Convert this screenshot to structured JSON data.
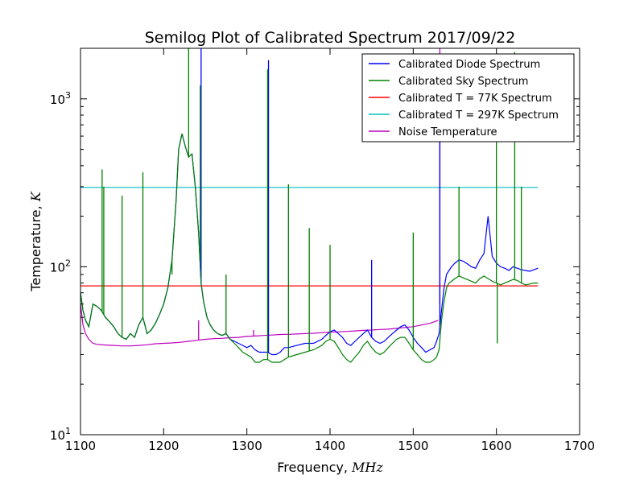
{
  "chart_data": {
    "type": "line",
    "title": "Semilog Plot of Calibrated Spectrum 2017/09/22",
    "xlabel": {
      "text": "Frequency, ",
      "unit": "MHz"
    },
    "ylabel": {
      "text": "Temperature, ",
      "unit": "K"
    },
    "xlim": [
      1100,
      1700
    ],
    "ylim": [
      10,
      2000
    ],
    "yscale": "log",
    "grid": false,
    "legend_position": "top-right",
    "x_ticks": [
      {
        "value": 1100,
        "label": "1100"
      },
      {
        "value": 1200,
        "label": "1200"
      },
      {
        "value": 1300,
        "label": "1300"
      },
      {
        "value": 1400,
        "label": "1400"
      },
      {
        "value": 1500,
        "label": "1500"
      },
      {
        "value": 1600,
        "label": "1600"
      },
      {
        "value": 1700,
        "label": "1700"
      }
    ],
    "y_ticks": [
      {
        "value": 10,
        "base": "10",
        "exp": "1"
      },
      {
        "value": 100,
        "base": "10",
        "exp": "2"
      },
      {
        "value": 1000,
        "base": "10",
        "exp": "3"
      }
    ],
    "series": [
      {
        "name": "Calibrated Diode Spectrum",
        "color": "#0000ff",
        "x": [
          1100,
          1103,
          1106,
          1110,
          1115,
          1120,
          1125,
          1130,
          1135,
          1140,
          1145,
          1150,
          1155,
          1160,
          1165,
          1170,
          1175,
          1180,
          1185,
          1190,
          1195,
          1200,
          1205,
          1210,
          1215,
          1218,
          1222,
          1226,
          1230,
          1234,
          1238,
          1242,
          1245,
          1248,
          1252,
          1256,
          1260,
          1265,
          1270,
          1275,
          1280,
          1285,
          1290,
          1295,
          1300,
          1305,
          1310,
          1315,
          1320,
          1325,
          1330,
          1335,
          1340,
          1345,
          1350,
          1360,
          1370,
          1380,
          1390,
          1395,
          1400,
          1405,
          1410,
          1415,
          1420,
          1425,
          1430,
          1435,
          1440,
          1445,
          1450,
          1455,
          1460,
          1465,
          1470,
          1475,
          1480,
          1485,
          1490,
          1495,
          1500,
          1505,
          1510,
          1515,
          1520,
          1525,
          1528,
          1531,
          1534,
          1537,
          1540,
          1543,
          1546,
          1550,
          1555,
          1560,
          1565,
          1570,
          1575,
          1580,
          1585,
          1590,
          1595,
          1600,
          1605,
          1610,
          1615,
          1620,
          1625,
          1630,
          1635,
          1640,
          1645,
          1650
        ],
        "y": [
          70,
          55,
          48,
          44,
          60,
          58,
          55,
          50,
          47,
          44,
          40,
          38,
          37,
          40,
          38,
          45,
          50,
          40,
          42,
          46,
          52,
          60,
          75,
          110,
          250,
          500,
          620,
          520,
          450,
          470,
          300,
          160,
          80,
          62,
          50,
          45,
          42,
          40,
          39,
          40,
          37,
          36,
          35,
          34,
          33,
          34,
          32,
          31,
          31,
          31,
          30,
          30,
          31,
          33,
          33,
          34,
          35,
          35,
          37,
          39,
          41,
          42,
          40,
          38,
          35,
          34,
          36,
          38,
          40,
          42,
          38,
          36,
          35,
          36,
          38,
          40,
          42,
          44,
          45,
          42,
          38,
          35,
          33,
          31,
          32,
          33,
          36,
          40,
          55,
          75,
          90,
          95,
          100,
          105,
          110,
          108,
          104,
          100,
          98,
          110,
          120,
          200,
          115,
          105,
          100,
          98,
          95,
          100,
          98,
          96,
          95,
          94,
          96,
          98
        ]
      },
      {
        "name": "Calibrated Sky Spectrum",
        "color": "#008000",
        "x": [
          1100,
          1103,
          1106,
          1110,
          1115,
          1120,
          1125,
          1130,
          1135,
          1140,
          1145,
          1150,
          1155,
          1160,
          1165,
          1170,
          1175,
          1180,
          1185,
          1190,
          1195,
          1200,
          1205,
          1210,
          1215,
          1218,
          1222,
          1226,
          1230,
          1234,
          1238,
          1242,
          1245,
          1248,
          1252,
          1256,
          1260,
          1265,
          1270,
          1275,
          1280,
          1285,
          1290,
          1295,
          1300,
          1305,
          1310,
          1315,
          1320,
          1325,
          1330,
          1335,
          1340,
          1345,
          1350,
          1360,
          1370,
          1380,
          1390,
          1395,
          1400,
          1405,
          1410,
          1415,
          1420,
          1425,
          1430,
          1435,
          1440,
          1445,
          1450,
          1455,
          1460,
          1465,
          1470,
          1475,
          1480,
          1485,
          1490,
          1495,
          1500,
          1505,
          1510,
          1515,
          1520,
          1525,
          1528,
          1531,
          1534,
          1537,
          1540,
          1543,
          1546,
          1550,
          1555,
          1560,
          1565,
          1570,
          1575,
          1580,
          1585,
          1590,
          1595,
          1600,
          1605,
          1610,
          1615,
          1620,
          1625,
          1630,
          1635,
          1640,
          1645,
          1650
        ],
        "y": [
          70,
          55,
          48,
          44,
          60,
          58,
          55,
          50,
          47,
          44,
          40,
          38,
          37,
          40,
          38,
          45,
          50,
          40,
          42,
          46,
          52,
          60,
          75,
          110,
          250,
          500,
          620,
          520,
          450,
          470,
          300,
          160,
          80,
          62,
          50,
          45,
          42,
          40,
          39,
          40,
          37,
          35,
          33,
          31,
          30,
          29,
          27,
          27,
          28,
          28,
          27,
          27,
          27,
          28,
          29,
          30,
          31,
          32,
          34,
          36,
          37,
          36,
          33,
          30,
          28,
          27,
          29,
          31,
          34,
          36,
          33,
          31,
          30,
          31,
          33,
          35,
          37,
          38,
          38,
          35,
          32,
          30,
          28,
          27,
          27,
          28,
          29,
          32,
          48,
          62,
          75,
          80,
          82,
          85,
          88,
          86,
          84,
          82,
          80,
          85,
          88,
          85,
          82,
          80,
          78,
          80,
          82,
          84,
          83,
          80,
          78,
          79,
          80,
          80
        ]
      },
      {
        "name": "Calibrated T = 77K Spectrum",
        "color": "#ff0000",
        "x": [
          1100,
          1650
        ],
        "y": [
          77,
          77
        ]
      },
      {
        "name": "Calibrated T = 297K Spectrum",
        "color": "#00bfbf",
        "x": [
          1100,
          1650
        ],
        "y": [
          297,
          297
        ]
      },
      {
        "name": "Noise Temperature",
        "color": "#bf00bf",
        "x": [
          1100,
          1103,
          1106,
          1110,
          1115,
          1120,
          1130,
          1140,
          1150,
          1160,
          1170,
          1180,
          1190,
          1200,
          1210,
          1220,
          1230,
          1240,
          1250,
          1260,
          1270,
          1280,
          1290,
          1300,
          1310,
          1320,
          1330,
          1340,
          1350,
          1360,
          1370,
          1380,
          1390,
          1400,
          1410,
          1420,
          1430,
          1440,
          1450,
          1460,
          1470,
          1480,
          1490,
          1500,
          1510,
          1520,
          1525,
          1530
        ],
        "y": [
          60,
          45,
          40,
          37,
          35,
          34.5,
          34.2,
          34,
          33.8,
          33.8,
          34,
          34.3,
          34.8,
          35,
          35.2,
          35.5,
          36,
          36.5,
          37,
          37.3,
          37.5,
          37.8,
          38,
          38.5,
          38.7,
          39,
          39.2,
          39.5,
          39.6,
          39.8,
          40,
          40.2,
          40.5,
          40.8,
          41,
          41.2,
          41.5,
          41.8,
          42,
          42.3,
          42.5,
          43,
          43.5,
          44,
          45,
          46,
          47,
          48
        ]
      }
    ],
    "spikes": [
      {
        "x": 1126,
        "peak": 380,
        "series": "green"
      },
      {
        "x": 1128,
        "peak": 300,
        "series": "green"
      },
      {
        "x": 1150,
        "peak": 265,
        "series": "green"
      },
      {
        "x": 1175,
        "peak": 365,
        "series": "green"
      },
      {
        "x": 1210,
        "peak": 90,
        "series": "green"
      },
      {
        "x": 1230,
        "peak": 2000,
        "series": "green"
      },
      {
        "x": 1245,
        "peak": 2000,
        "series": "blue"
      },
      {
        "x": 1244,
        "peak": 1200,
        "series": "green"
      },
      {
        "x": 1275,
        "peak": 90,
        "series": "green"
      },
      {
        "x": 1326,
        "peak": 1700,
        "series": "blue"
      },
      {
        "x": 1325,
        "peak": 1500,
        "series": "green"
      },
      {
        "x": 1350,
        "peak": 310,
        "series": "green"
      },
      {
        "x": 1375,
        "peak": 170,
        "series": "green"
      },
      {
        "x": 1400,
        "peak": 135,
        "series": "green"
      },
      {
        "x": 1450,
        "peak": 110,
        "series": "blue"
      },
      {
        "x": 1500,
        "peak": 160,
        "series": "green"
      },
      {
        "x": 1532,
        "peak": 600,
        "series": "blue"
      },
      {
        "x": 1555,
        "peak": 300,
        "series": "green"
      },
      {
        "x": 1600,
        "peak": 1000,
        "series": "green"
      },
      {
        "x": 1601,
        "peak": 35,
        "series": "green"
      },
      {
        "x": 1622,
        "peak": 1900,
        "series": "green"
      },
      {
        "x": 1630,
        "peak": 300,
        "series": "green"
      },
      {
        "x": 1242,
        "peak": 48,
        "series": "magenta"
      },
      {
        "x": 1308,
        "peak": 42,
        "series": "magenta"
      },
      {
        "x": 1532,
        "peak": 2000,
        "series": "magenta"
      }
    ]
  }
}
